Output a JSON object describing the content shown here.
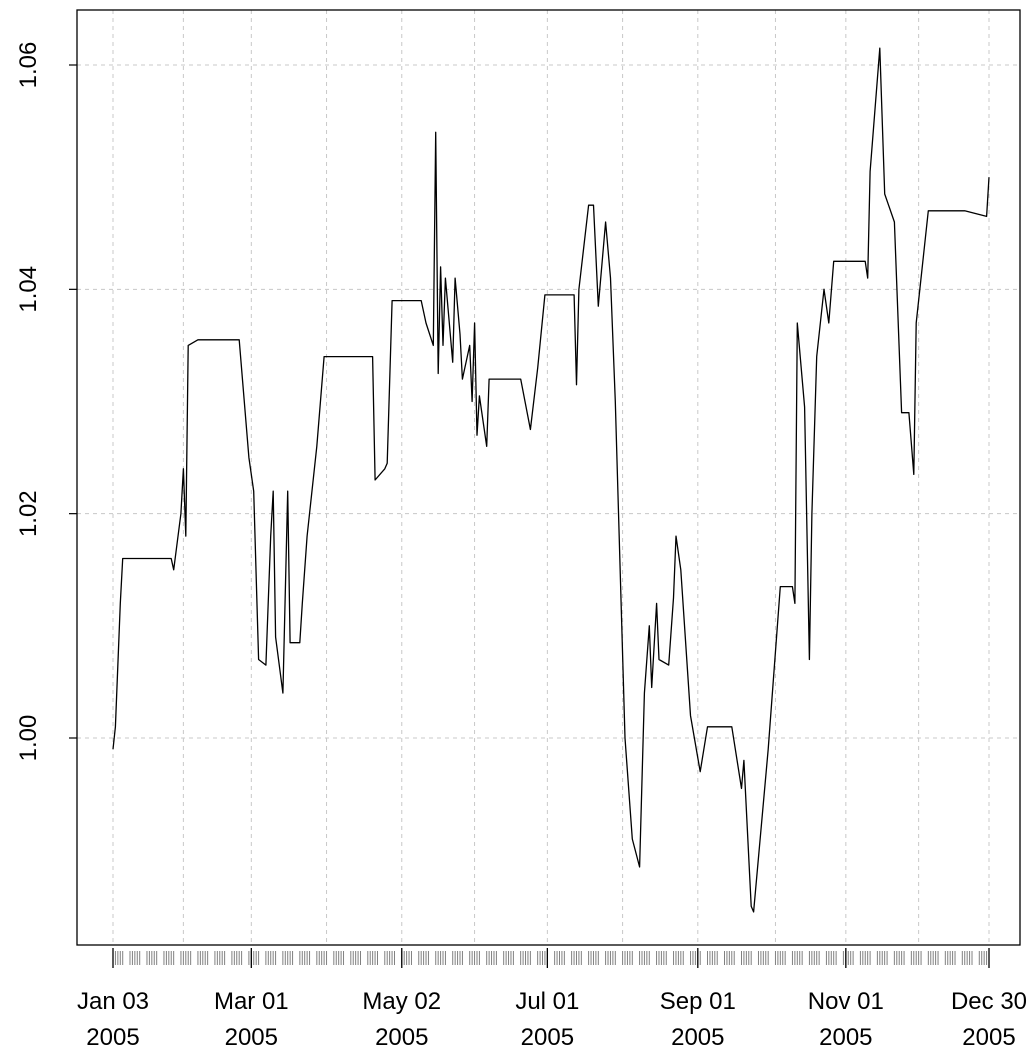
{
  "colors": {
    "background": "#ffffff",
    "line": "#000000",
    "grid": "#c8c8c8",
    "axis": "#000000",
    "ticks": "#808080"
  },
  "chart_data": {
    "type": "line",
    "title": "",
    "xlabel": "",
    "ylabel": "",
    "grid": true,
    "xlim": [
      "2005-01-03",
      "2005-12-30"
    ],
    "ylim": [
      0.982,
      1.066
    ],
    "y_ticks": [
      1.0,
      1.02,
      1.04,
      1.06
    ],
    "y_tick_labels": [
      "1.00",
      "1.02",
      "1.04",
      "1.06"
    ],
    "x_ticks": [
      {
        "date": "2005-01-03",
        "line1": "Jan 03",
        "line2": "2005"
      },
      {
        "date": "2005-03-01",
        "line1": "Mar 01",
        "line2": "2005"
      },
      {
        "date": "2005-05-02",
        "line1": "May 02",
        "line2": "2005"
      },
      {
        "date": "2005-07-01",
        "line1": "Jul 01",
        "line2": "2005"
      },
      {
        "date": "2005-09-01",
        "line1": "Sep 01",
        "line2": "2005"
      },
      {
        "date": "2005-11-01",
        "line1": "Nov 01",
        "line2": "2005"
      },
      {
        "date": "2005-12-30",
        "line1": "Dec 30",
        "line2": "2005"
      }
    ],
    "x_grid_dates": [
      "2005-01-03",
      "2005-02-01",
      "2005-03-01",
      "2005-04-01",
      "2005-05-02",
      "2005-06-01",
      "2005-07-01",
      "2005-08-01",
      "2005-09-01",
      "2005-10-03",
      "2005-11-01",
      "2005-12-01",
      "2005-12-30"
    ],
    "series": [
      {
        "points": [
          [
            "2005-01-03",
            0.999
          ],
          [
            "2005-01-04",
            1.001
          ],
          [
            "2005-01-06",
            1.012
          ],
          [
            "2005-01-07",
            1.016
          ],
          [
            "2005-01-12",
            1.016
          ],
          [
            "2005-01-20",
            1.016
          ],
          [
            "2005-01-27",
            1.016
          ],
          [
            "2005-01-28",
            1.015
          ],
          [
            "2005-01-31",
            1.02
          ],
          [
            "2005-02-01",
            1.024
          ],
          [
            "2005-02-02",
            1.018
          ],
          [
            "2005-02-03",
            1.035
          ],
          [
            "2005-02-07",
            1.0355
          ],
          [
            "2005-02-15",
            1.0355
          ],
          [
            "2005-02-24",
            1.0355
          ],
          [
            "2005-02-28",
            1.025
          ],
          [
            "2005-03-02",
            1.022
          ],
          [
            "2005-03-04",
            1.007
          ],
          [
            "2005-03-07",
            1.0065
          ],
          [
            "2005-03-09",
            1.018
          ],
          [
            "2005-03-10",
            1.022
          ],
          [
            "2005-03-11",
            1.009
          ],
          [
            "2005-03-14",
            1.004
          ],
          [
            "2005-03-16",
            1.022
          ],
          [
            "2005-03-17",
            1.0085
          ],
          [
            "2005-03-21",
            1.0085
          ],
          [
            "2005-03-22",
            1.012
          ],
          [
            "2005-03-24",
            1.018
          ],
          [
            "2005-03-28",
            1.026
          ],
          [
            "2005-03-31",
            1.034
          ],
          [
            "2005-04-08",
            1.034
          ],
          [
            "2005-04-20",
            1.034
          ],
          [
            "2005-04-21",
            1.023
          ],
          [
            "2005-04-25",
            1.024
          ],
          [
            "2005-04-26",
            1.0245
          ],
          [
            "2005-04-28",
            1.039
          ],
          [
            "2005-05-03",
            1.039
          ],
          [
            "2005-05-10",
            1.039
          ],
          [
            "2005-05-12",
            1.037
          ],
          [
            "2005-05-15",
            1.035
          ],
          [
            "2005-05-16",
            1.054
          ],
          [
            "2005-05-17",
            1.0325
          ],
          [
            "2005-05-18",
            1.042
          ],
          [
            "2005-05-19",
            1.035
          ],
          [
            "2005-05-20",
            1.041
          ],
          [
            "2005-05-23",
            1.0335
          ],
          [
            "2005-05-24",
            1.041
          ],
          [
            "2005-05-26",
            1.036
          ],
          [
            "2005-05-27",
            1.032
          ],
          [
            "2005-05-30",
            1.035
          ],
          [
            "2005-05-31",
            1.03
          ],
          [
            "2005-06-01",
            1.037
          ],
          [
            "2005-06-02",
            1.027
          ],
          [
            "2005-06-03",
            1.0305
          ],
          [
            "2005-06-06",
            1.026
          ],
          [
            "2005-06-07",
            1.032
          ],
          [
            "2005-06-13",
            1.032
          ],
          [
            "2005-06-20",
            1.032
          ],
          [
            "2005-06-24",
            1.0275
          ],
          [
            "2005-06-27",
            1.033
          ],
          [
            "2005-06-30",
            1.0395
          ],
          [
            "2005-07-05",
            1.0395
          ],
          [
            "2005-07-12",
            1.0395
          ],
          [
            "2005-07-13",
            1.0315
          ],
          [
            "2005-07-14",
            1.04
          ],
          [
            "2005-07-18",
            1.0475
          ],
          [
            "2005-07-20",
            1.0475
          ],
          [
            "2005-07-22",
            1.0385
          ],
          [
            "2005-07-25",
            1.046
          ],
          [
            "2005-07-27",
            1.041
          ],
          [
            "2005-07-29",
            1.03
          ],
          [
            "2005-08-02",
            1.0
          ],
          [
            "2005-08-05",
            0.991
          ],
          [
            "2005-08-08",
            0.9885
          ],
          [
            "2005-08-10",
            1.004
          ],
          [
            "2005-08-12",
            1.01
          ],
          [
            "2005-08-13",
            1.0045
          ],
          [
            "2005-08-15",
            1.012
          ],
          [
            "2005-08-16",
            1.007
          ],
          [
            "2005-08-20",
            1.0065
          ],
          [
            "2005-08-22",
            1.0125
          ],
          [
            "2005-08-23",
            1.018
          ],
          [
            "2005-08-25",
            1.015
          ],
          [
            "2005-08-29",
            1.002
          ],
          [
            "2005-09-02",
            0.997
          ],
          [
            "2005-09-05",
            1.001
          ],
          [
            "2005-09-12",
            1.001
          ],
          [
            "2005-09-15",
            1.001
          ],
          [
            "2005-09-19",
            0.9955
          ],
          [
            "2005-09-20",
            0.998
          ],
          [
            "2005-09-23",
            0.985
          ],
          [
            "2005-09-24",
            0.9845
          ],
          [
            "2005-09-30",
            0.999
          ],
          [
            "2005-10-05",
            1.0135
          ],
          [
            "2005-10-10",
            1.0135
          ],
          [
            "2005-10-11",
            1.012
          ],
          [
            "2005-10-12",
            1.037
          ],
          [
            "2005-10-15",
            1.0295
          ],
          [
            "2005-10-17",
            1.007
          ],
          [
            "2005-10-18",
            1.02
          ],
          [
            "2005-10-20",
            1.034
          ],
          [
            "2005-10-23",
            1.04
          ],
          [
            "2005-10-25",
            1.037
          ],
          [
            "2005-10-27",
            1.0425
          ],
          [
            "2005-11-01",
            1.0425
          ],
          [
            "2005-11-09",
            1.0425
          ],
          [
            "2005-11-10",
            1.041
          ],
          [
            "2005-11-11",
            1.0505
          ],
          [
            "2005-11-15",
            1.0615
          ],
          [
            "2005-11-17",
            1.0485
          ],
          [
            "2005-11-21",
            1.046
          ],
          [
            "2005-11-24",
            1.029
          ],
          [
            "2005-11-27",
            1.029
          ],
          [
            "2005-11-29",
            1.0235
          ],
          [
            "2005-11-30",
            1.037
          ],
          [
            "2005-12-05",
            1.047
          ],
          [
            "2005-12-12",
            1.047
          ],
          [
            "2005-12-20",
            1.047
          ],
          [
            "2005-12-29",
            1.0465
          ],
          [
            "2005-12-30",
            1.05
          ]
        ]
      }
    ],
    "rug": "trading days"
  }
}
